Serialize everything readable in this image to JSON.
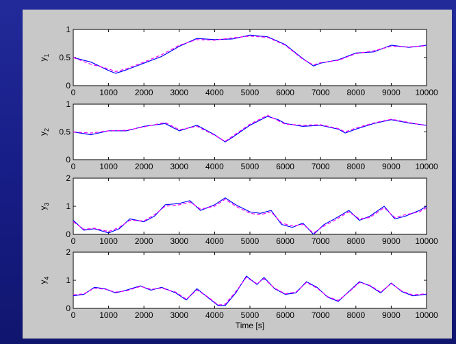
{
  "colors": {
    "background": "#1a1f8c",
    "figure": "#c8c8c8",
    "axes": "#ffffff",
    "series_solid": "#0000ff",
    "series_dashed": "#ff00ff"
  },
  "chart_data": [
    {
      "type": "line",
      "ylabel": "y",
      "ylabel_sub": "1",
      "xlim": [
        0,
        10000
      ],
      "ylim": [
        0,
        1
      ],
      "yticks": [
        "0",
        "0.5",
        "1"
      ],
      "xticks": [
        "0",
        "1000",
        "2000",
        "3000",
        "4000",
        "5000",
        "6000",
        "7000",
        "8000",
        "9000",
        "10000"
      ],
      "x": [
        0,
        500,
        1000,
        1200,
        1500,
        2000,
        2500,
        3000,
        3500,
        4000,
        4500,
        5000,
        5500,
        6000,
        6500,
        6800,
        7000,
        7500,
        8000,
        8500,
        9000,
        9500,
        10000
      ],
      "series": [
        {
          "style": "solid",
          "color": "#0000ff",
          "values": [
            0.5,
            0.42,
            0.27,
            0.22,
            0.28,
            0.4,
            0.52,
            0.7,
            0.84,
            0.82,
            0.83,
            0.9,
            0.87,
            0.73,
            0.48,
            0.35,
            0.4,
            0.46,
            0.58,
            0.6,
            0.72,
            0.68,
            0.72
          ]
        },
        {
          "style": "dashed",
          "color": "#ff00ff",
          "values": [
            0.5,
            0.38,
            0.3,
            0.25,
            0.3,
            0.42,
            0.55,
            0.72,
            0.82,
            0.81,
            0.85,
            0.88,
            0.86,
            0.72,
            0.47,
            0.37,
            0.41,
            0.45,
            0.57,
            0.62,
            0.7,
            0.69,
            0.71
          ]
        }
      ]
    },
    {
      "type": "line",
      "ylabel": "y",
      "ylabel_sub": "2",
      "xlim": [
        0,
        10000
      ],
      "ylim": [
        0,
        1
      ],
      "yticks": [
        "0",
        "0.5",
        "1"
      ],
      "xticks": [
        "0",
        "1000",
        "2000",
        "3000",
        "4000",
        "5000",
        "6000",
        "7000",
        "8000",
        "9000",
        "10000"
      ],
      "x": [
        0,
        500,
        1000,
        1500,
        2000,
        2600,
        3000,
        3500,
        4000,
        4300,
        4500,
        5000,
        5500,
        5800,
        6000,
        6500,
        7000,
        7500,
        7700,
        8000,
        8500,
        9000,
        9500,
        10000
      ],
      "series": [
        {
          "style": "solid",
          "color": "#0000ff",
          "values": [
            0.5,
            0.45,
            0.52,
            0.52,
            0.6,
            0.65,
            0.52,
            0.62,
            0.45,
            0.32,
            0.4,
            0.62,
            0.78,
            0.72,
            0.65,
            0.6,
            0.62,
            0.55,
            0.48,
            0.55,
            0.65,
            0.72,
            0.66,
            0.62
          ]
        },
        {
          "style": "dashed",
          "color": "#ff00ff",
          "values": [
            0.5,
            0.48,
            0.52,
            0.53,
            0.59,
            0.67,
            0.54,
            0.6,
            0.44,
            0.33,
            0.42,
            0.64,
            0.8,
            0.7,
            0.64,
            0.62,
            0.63,
            0.56,
            0.5,
            0.57,
            0.66,
            0.73,
            0.67,
            0.61
          ]
        }
      ]
    },
    {
      "type": "line",
      "ylabel": "y",
      "ylabel_sub": "3",
      "xlim": [
        0,
        10000
      ],
      "ylim": [
        0,
        2
      ],
      "yticks": [
        "0",
        "1",
        "2"
      ],
      "xticks": [
        "0",
        "1000",
        "2000",
        "3000",
        "4000",
        "5000",
        "6000",
        "7000",
        "8000",
        "9000",
        "10000"
      ],
      "x": [
        0,
        300,
        600,
        1000,
        1300,
        1600,
        2000,
        2300,
        2600,
        3000,
        3300,
        3600,
        4000,
        4300,
        4600,
        5000,
        5300,
        5600,
        5900,
        6200,
        6500,
        6800,
        7100,
        7400,
        7800,
        8100,
        8400,
        8800,
        9100,
        9400,
        9800,
        10000
      ],
      "series": [
        {
          "style": "solid",
          "color": "#0000ff",
          "values": [
            0.5,
            0.15,
            0.2,
            0.05,
            0.2,
            0.55,
            0.45,
            0.65,
            1.05,
            1.1,
            1.2,
            0.85,
            1.05,
            1.3,
            1.05,
            0.8,
            0.75,
            0.85,
            0.35,
            0.25,
            0.4,
            0.0,
            0.35,
            0.55,
            0.85,
            0.5,
            0.65,
            1.0,
            0.55,
            0.65,
            0.85,
            1.0
          ]
        },
        {
          "style": "dashed",
          "color": "#ff00ff",
          "values": [
            0.45,
            0.18,
            0.22,
            0.1,
            0.25,
            0.5,
            0.48,
            0.7,
            1.0,
            1.05,
            1.15,
            0.9,
            1.0,
            1.25,
            1.0,
            0.75,
            0.7,
            0.8,
            0.4,
            0.3,
            0.35,
            0.05,
            0.3,
            0.5,
            0.8,
            0.55,
            0.6,
            0.95,
            0.6,
            0.7,
            0.8,
            0.95
          ]
        }
      ]
    },
    {
      "type": "line",
      "ylabel": "y",
      "ylabel_sub": "4",
      "xlim": [
        0,
        10000
      ],
      "ylim": [
        0,
        2
      ],
      "yticks": [
        "0",
        "1",
        "2"
      ],
      "xticks": [
        "0",
        "1000",
        "2000",
        "3000",
        "4000",
        "5000",
        "6000",
        "7000",
        "8000",
        "9000",
        "10000"
      ],
      "xlabel": "Time [s]",
      "x": [
        0,
        300,
        600,
        900,
        1200,
        1500,
        1900,
        2200,
        2500,
        2900,
        3200,
        3500,
        3800,
        4100,
        4300,
        4600,
        4900,
        5200,
        5400,
        5700,
        6000,
        6300,
        6600,
        6900,
        7200,
        7500,
        7800,
        8100,
        8400,
        8700,
        9000,
        9300,
        9600,
        10000
      ],
      "series": [
        {
          "style": "solid",
          "color": "#0000ff",
          "values": [
            0.45,
            0.5,
            0.75,
            0.7,
            0.55,
            0.65,
            0.8,
            0.65,
            0.75,
            0.55,
            0.3,
            0.7,
            0.4,
            0.1,
            0.1,
            0.55,
            1.15,
            0.85,
            1.1,
            0.7,
            0.5,
            0.55,
            0.95,
            0.75,
            0.4,
            0.25,
            0.6,
            0.95,
            0.8,
            0.55,
            0.9,
            0.6,
            0.45,
            0.5
          ]
        },
        {
          "style": "dashed",
          "color": "#ff00ff",
          "values": [
            0.48,
            0.52,
            0.72,
            0.68,
            0.58,
            0.62,
            0.78,
            0.68,
            0.72,
            0.58,
            0.33,
            0.65,
            0.42,
            0.12,
            0.15,
            0.6,
            1.1,
            0.88,
            1.05,
            0.72,
            0.52,
            0.58,
            0.92,
            0.72,
            0.42,
            0.28,
            0.58,
            0.92,
            0.82,
            0.58,
            0.88,
            0.62,
            0.48,
            0.52
          ]
        }
      ]
    }
  ]
}
